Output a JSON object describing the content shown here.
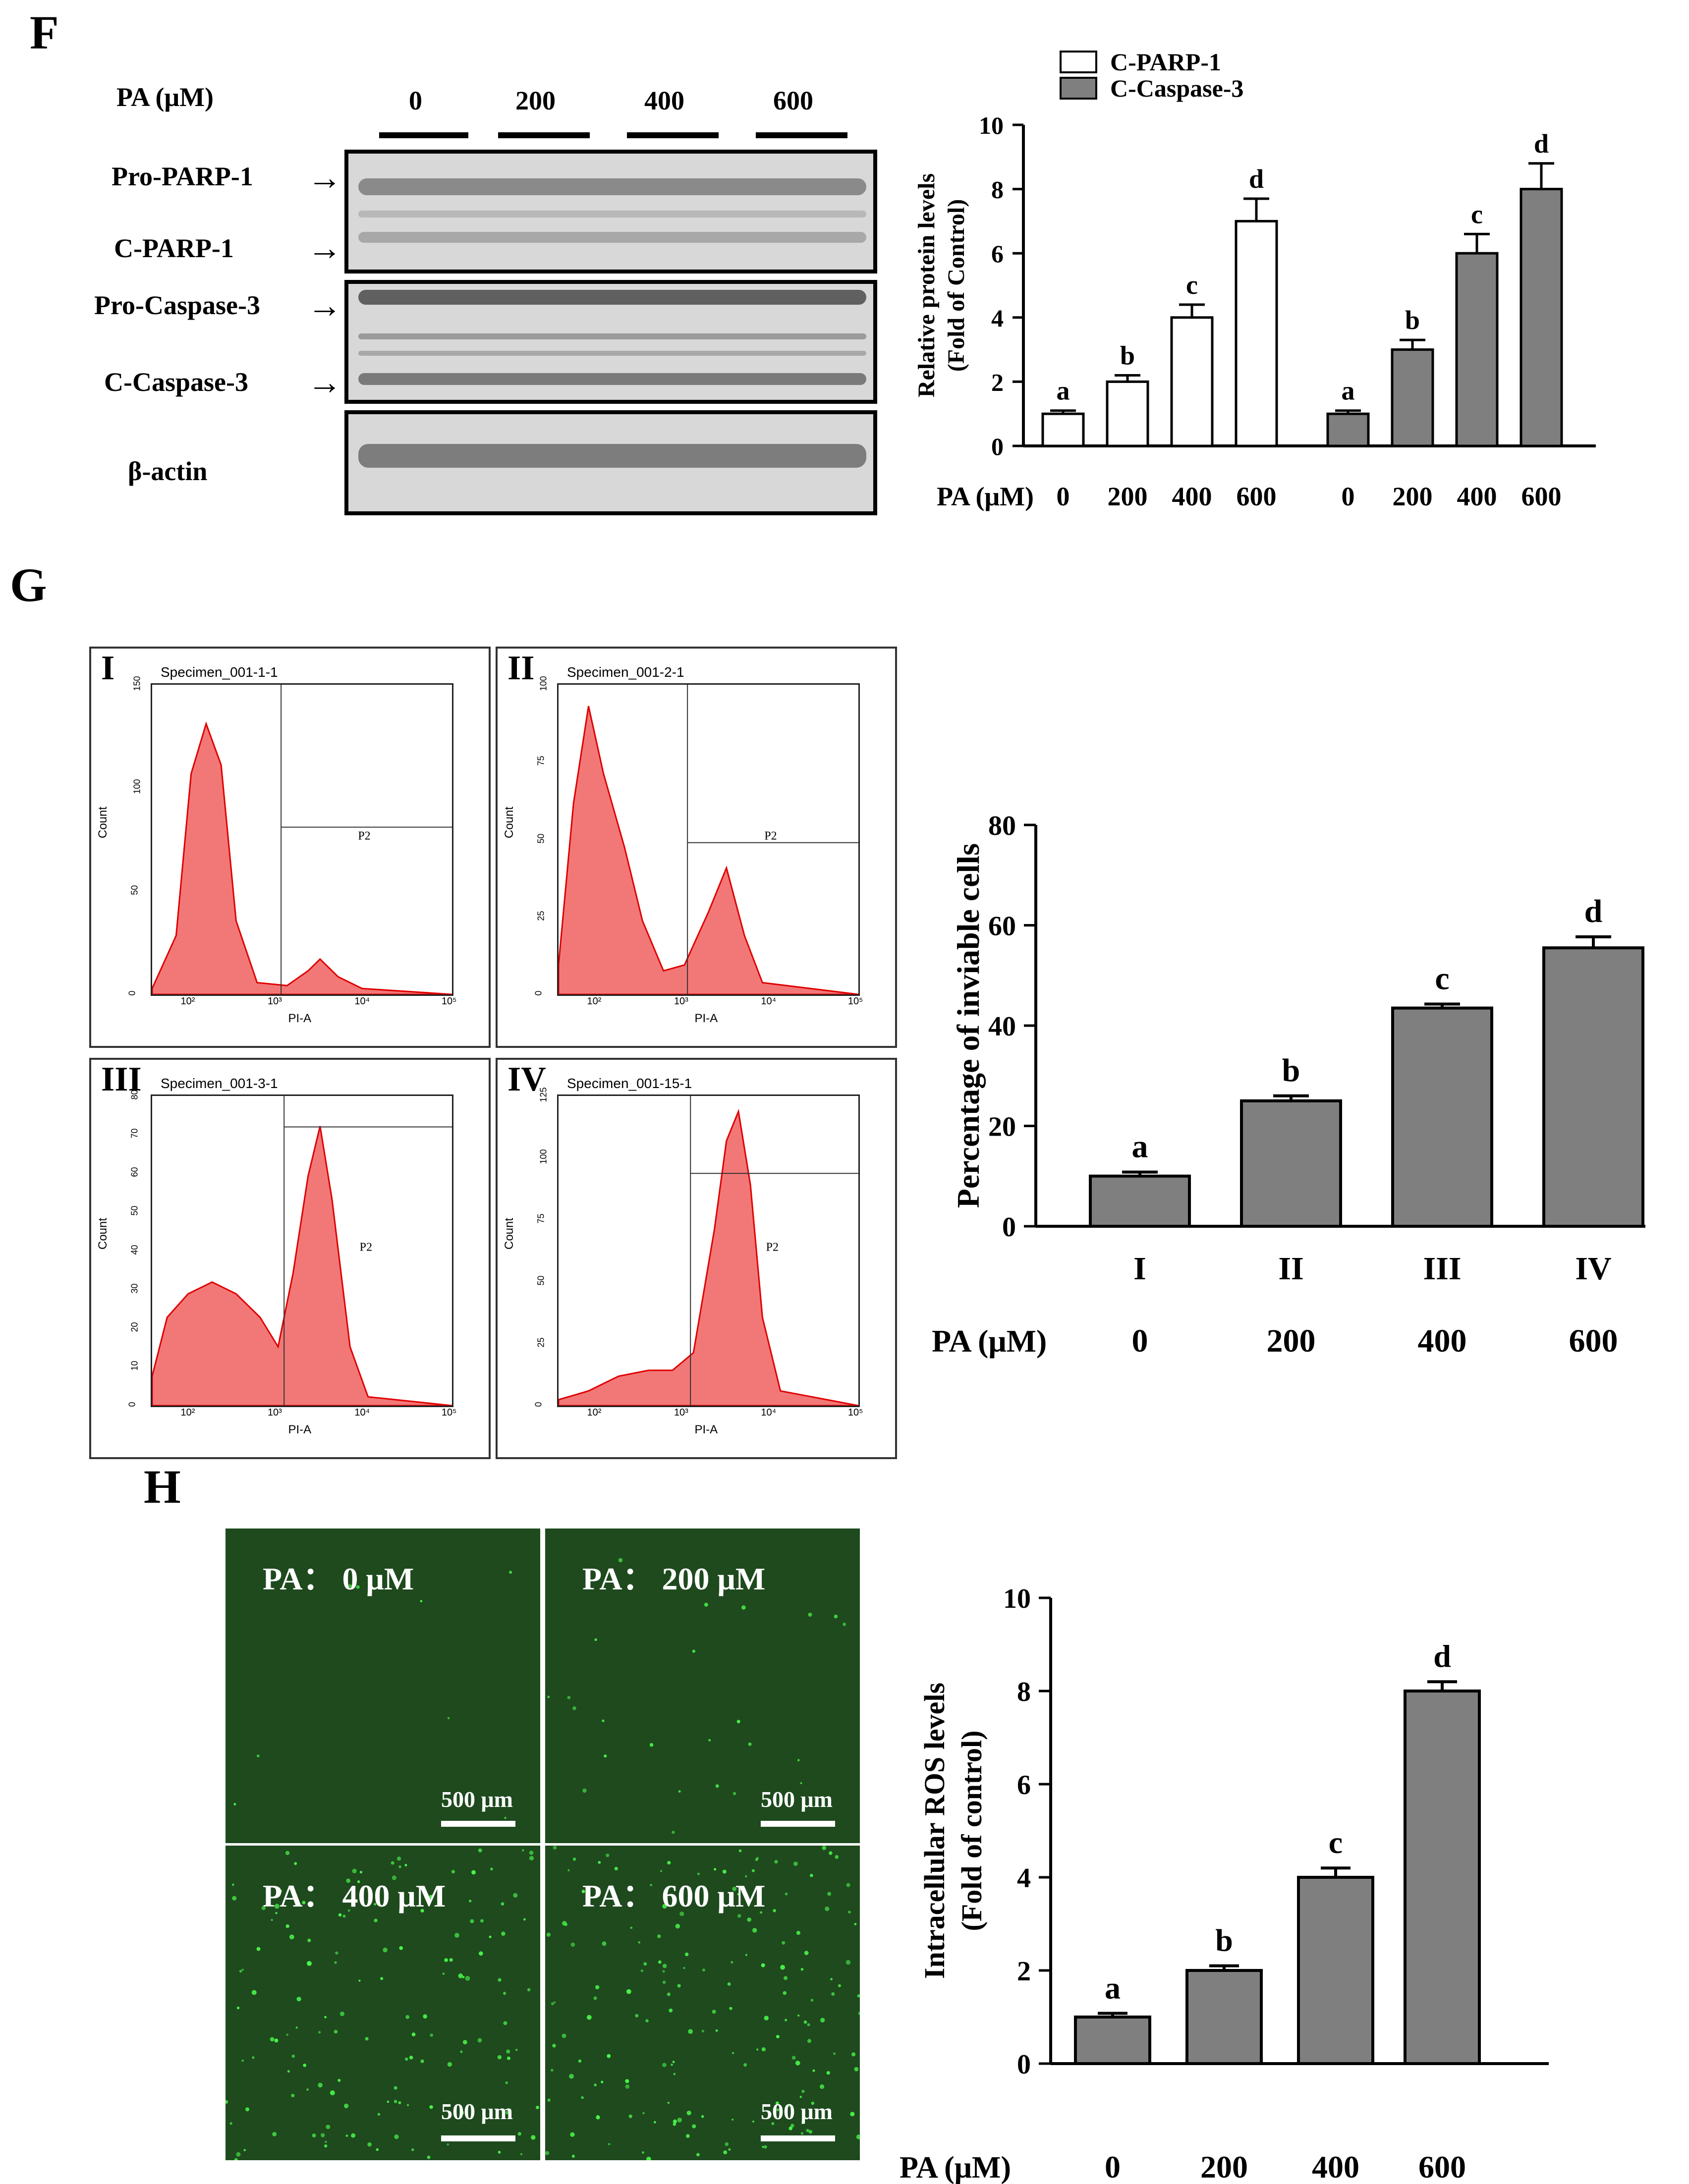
{
  "panels": {
    "F": "F",
    "G": "G",
    "H": "H"
  },
  "colors": {
    "bar_gray": "#7f7f7f",
    "bar_white": "#ffffff",
    "flow_red": "#f06060",
    "micro_green": "#1e4a1e"
  },
  "panel_F": {
    "header": "PA (μM)",
    "doses": [
      "0",
      "200",
      "400",
      "600"
    ],
    "blot_labels": [
      "Pro-PARP-1",
      "C-PARP-1",
      "Pro-Caspase-3",
      "C-Caspase-3",
      "β-actin"
    ],
    "arrow": "→"
  },
  "panel_G": {
    "histograms": [
      {
        "roman": "I",
        "title": "Specimen_001-1-1"
      },
      {
        "roman": "II",
        "title": "Specimen_001-2-1"
      },
      {
        "roman": "III",
        "title": "Specimen_001-3-1"
      },
      {
        "roman": "IV",
        "title": "Specimen_001-15-1"
      }
    ],
    "gate": "P2",
    "ylabel": "Count",
    "xlabel": "PI-A",
    "xticks": [
      "10²",
      "10³",
      "10⁴",
      "10⁵"
    ],
    "yticks": [
      [
        "150",
        "100",
        "50",
        "0"
      ],
      [
        "100",
        "75",
        "50",
        "25",
        "0"
      ],
      [
        "80",
        "70",
        "60",
        "50",
        "40",
        "30",
        "20",
        "10",
        "0"
      ],
      [
        "125",
        "100",
        "75",
        "50",
        "25",
        "0"
      ]
    ]
  },
  "panel_H": {
    "images": [
      {
        "label": "PA：  0 μM",
        "scale": "500 μm"
      },
      {
        "label": "PA：  200 μM",
        "scale": "500 μm"
      },
      {
        "label": "PA：  400 μM",
        "scale": "500 μm"
      },
      {
        "label": "PA：  600 μM",
        "scale": "500 μm"
      }
    ]
  },
  "chart_data": [
    {
      "id": "F",
      "type": "bar",
      "ylabel": "Relative protein levels\n(Fold of Control)",
      "ylim": [
        0,
        10
      ],
      "yticks": [
        0,
        2,
        4,
        6,
        8,
        10
      ],
      "legend": [
        "C-PARP-1",
        "C-Caspase-3"
      ],
      "xlabel_prefix": "PA (μM)",
      "categories": [
        "0",
        "200",
        "400",
        "600"
      ],
      "series": [
        {
          "name": "C-PARP-1",
          "values": [
            1,
            2,
            4,
            7
          ],
          "errors": [
            0.1,
            0.2,
            0.4,
            0.7
          ],
          "letters": [
            "a",
            "b",
            "c",
            "d"
          ]
        },
        {
          "name": "C-Caspase-3",
          "values": [
            1,
            3,
            6,
            8
          ],
          "errors": [
            0.1,
            0.3,
            0.6,
            0.8
          ],
          "letters": [
            "a",
            "b",
            "c",
            "d"
          ]
        }
      ]
    },
    {
      "id": "G",
      "type": "bar",
      "ylabel": "Percentage of inviable cells",
      "ylim": [
        0,
        80
      ],
      "yticks": [
        0,
        20,
        40,
        60,
        80
      ],
      "categories": [
        "I",
        "II",
        "III",
        "IV"
      ],
      "xlabel_prefix": "PA (μM)",
      "doses": [
        "0",
        "200",
        "400",
        "600"
      ],
      "values": [
        10,
        25,
        43.5,
        55.5
      ],
      "errors": [
        0.8,
        1.0,
        0.8,
        2.2
      ],
      "letters": [
        "a",
        "b",
        "c",
        "d"
      ]
    },
    {
      "id": "H",
      "type": "bar",
      "ylabel": "Intracellular ROS levels\n(Fold of control)",
      "ylim": [
        0,
        10
      ],
      "yticks": [
        0,
        2,
        4,
        6,
        8,
        10
      ],
      "categories": [
        "0",
        "200",
        "400",
        "600"
      ],
      "xlabel_prefix": "PA (μM)",
      "values": [
        1,
        2,
        4,
        8
      ],
      "errors": [
        0.08,
        0.1,
        0.2,
        0.2
      ],
      "letters": [
        "a",
        "b",
        "c",
        "d"
      ]
    }
  ]
}
